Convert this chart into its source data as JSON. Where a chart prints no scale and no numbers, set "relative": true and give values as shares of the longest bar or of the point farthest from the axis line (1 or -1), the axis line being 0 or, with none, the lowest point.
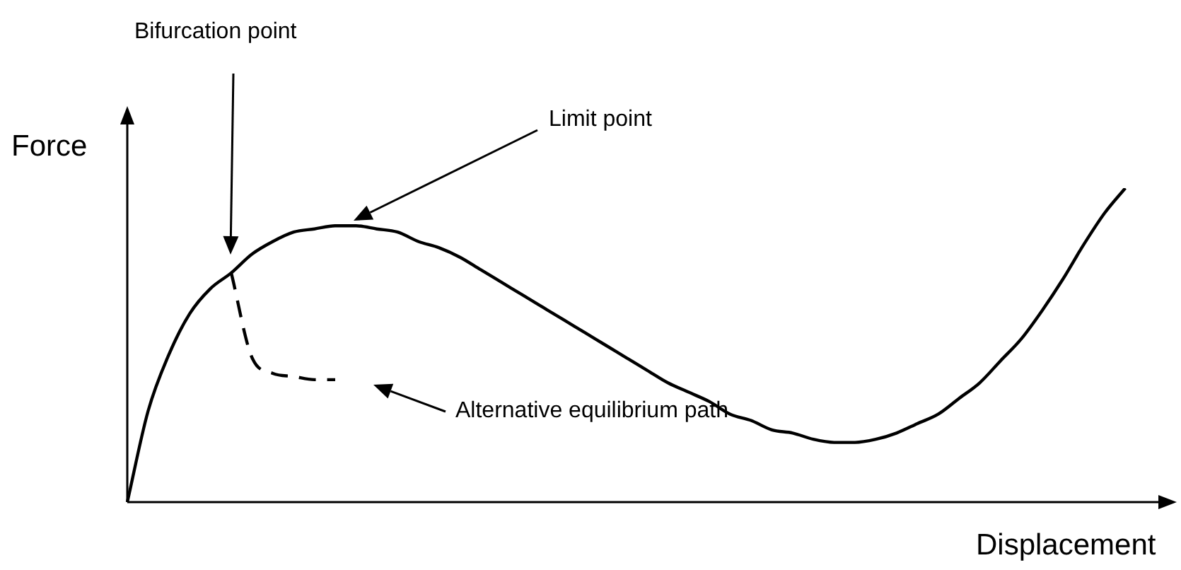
{
  "chart_data": {
    "type": "line",
    "relative": true,
    "xlabel": "Displacement",
    "ylabel": "Force",
    "marker": "none",
    "legend": false,
    "categories": [
      null,
      null,
      null,
      null,
      null,
      null,
      null,
      null,
      null,
      null,
      null,
      null,
      null,
      null,
      null,
      null,
      null,
      null,
      null,
      null,
      null,
      null,
      null,
      null,
      null,
      null,
      null,
      null,
      null,
      null,
      null,
      null,
      null,
      null,
      null,
      null,
      null,
      null,
      null,
      null,
      null,
      null,
      null,
      null,
      null,
      null,
      null,
      null,
      null,
      null,
      null
    ],
    "series": [
      {
        "color": "#000000",
        "line_style": "solid",
        "values": [
          0,
          0.29,
          0.47,
          0.6,
          0.68,
          0.73,
          0.79,
          0.83,
          0.86,
          0.87,
          0.88,
          0.88,
          0.87,
          0.86,
          0.83,
          0.81,
          0.78,
          0.74,
          0.7,
          0.66,
          0.62,
          0.58,
          0.54,
          0.5,
          0.46,
          0.42,
          0.38,
          0.35,
          0.32,
          0.28,
          0.26,
          0.23,
          0.22,
          0.2,
          0.19,
          0.19,
          0.2,
          0.22,
          0.25,
          0.28,
          0.33,
          0.38,
          0.45,
          0.52,
          0.61,
          0.71,
          0.82,
          0.92,
          1,
          null,
          null
        ]
      },
      {
        "color": "#000000",
        "line_style": "dashed",
        "values": [
          null,
          null,
          null,
          null,
          null,
          0.73,
          0.46,
          0.41,
          0.4,
          0.39,
          0.39,
          null,
          null,
          null,
          null,
          null,
          null,
          null,
          null,
          null,
          null,
          null,
          null,
          null,
          null,
          null,
          null,
          null,
          null,
          null,
          null,
          null,
          null,
          null,
          null,
          null,
          null,
          null,
          null,
          null,
          null,
          null,
          null,
          null,
          null,
          null,
          null,
          null,
          null,
          null,
          null
        ]
      }
    ],
    "annotations": [
      "Bifurcation point",
      "Limit point",
      "Alternative equilibrium path"
    ]
  }
}
